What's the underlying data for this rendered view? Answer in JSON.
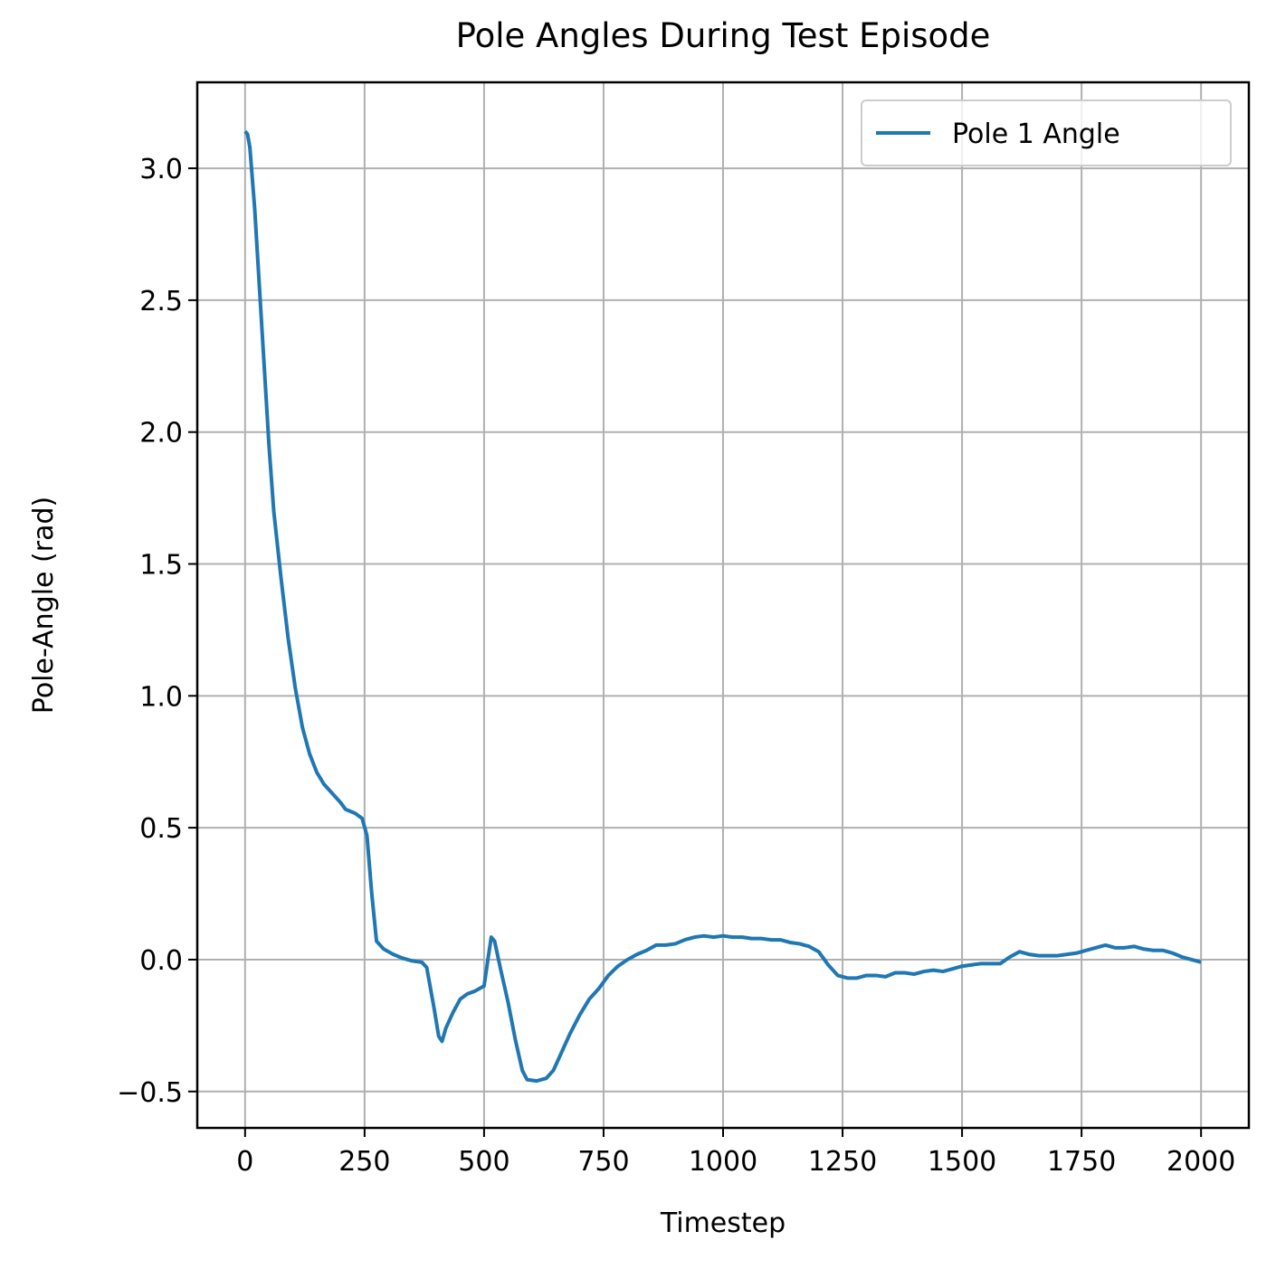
{
  "chart_data": {
    "type": "line",
    "title": "Pole Angles During Test Episode",
    "xlabel": "Timestep",
    "ylabel": "Pole-Angle (rad)",
    "x": [
      0,
      5,
      10,
      20,
      30,
      40,
      50,
      60,
      75,
      90,
      105,
      120,
      135,
      150,
      165,
      180,
      200,
      210,
      230,
      245,
      255,
      265,
      275,
      290,
      310,
      330,
      350,
      370,
      380,
      395,
      405,
      412,
      420,
      435,
      450,
      465,
      480,
      500,
      508,
      515,
      522,
      535,
      550,
      565,
      580,
      590,
      610,
      630,
      645,
      660,
      680,
      700,
      720,
      740,
      760,
      780,
      800,
      820,
      840,
      860,
      880,
      900,
      920,
      940,
      960,
      980,
      1000,
      1020,
      1040,
      1060,
      1080,
      1100,
      1120,
      1140,
      1160,
      1180,
      1200,
      1220,
      1240,
      1260,
      1280,
      1300,
      1320,
      1340,
      1360,
      1380,
      1400,
      1420,
      1440,
      1460,
      1480,
      1500,
      1520,
      1540,
      1560,
      1580,
      1600,
      1620,
      1640,
      1660,
      1680,
      1700,
      1720,
      1740,
      1760,
      1780,
      1800,
      1820,
      1840,
      1860,
      1880,
      1900,
      1920,
      1940,
      1960,
      1980,
      2000
    ],
    "series": [
      {
        "name": "Pole 1 Angle",
        "color": "#1f77b4",
        "values": [
          3.14,
          3.13,
          3.08,
          2.85,
          2.55,
          2.25,
          1.95,
          1.7,
          1.45,
          1.22,
          1.03,
          0.88,
          0.78,
          0.71,
          0.665,
          0.635,
          0.595,
          0.57,
          0.555,
          0.535,
          0.47,
          0.25,
          0.07,
          0.04,
          0.02,
          0.005,
          -0.005,
          -0.01,
          -0.03,
          -0.18,
          -0.29,
          -0.31,
          -0.26,
          -0.2,
          -0.15,
          -0.13,
          -0.12,
          -0.1,
          0.0,
          0.085,
          0.07,
          -0.04,
          -0.16,
          -0.3,
          -0.42,
          -0.455,
          -0.46,
          -0.45,
          -0.42,
          -0.36,
          -0.28,
          -0.21,
          -0.15,
          -0.11,
          -0.06,
          -0.025,
          0.0,
          0.02,
          0.035,
          0.055,
          0.055,
          0.06,
          0.075,
          0.085,
          0.09,
          0.085,
          0.09,
          0.085,
          0.085,
          0.08,
          0.08,
          0.075,
          0.075,
          0.065,
          0.06,
          0.05,
          0.03,
          -0.02,
          -0.06,
          -0.07,
          -0.07,
          -0.06,
          -0.06,
          -0.065,
          -0.05,
          -0.05,
          -0.055,
          -0.045,
          -0.04,
          -0.045,
          -0.035,
          -0.025,
          -0.02,
          -0.015,
          -0.015,
          -0.015,
          0.01,
          0.03,
          0.02,
          0.015,
          0.015,
          0.015,
          0.02,
          0.025,
          0.035,
          0.045,
          0.055,
          0.045,
          0.045,
          0.05,
          0.04,
          0.035,
          0.035,
          0.025,
          0.01,
          0.0,
          -0.01
        ]
      }
    ],
    "xlim": [
      -100,
      2100
    ],
    "ylim": [
      -0.638,
      3.326
    ],
    "xticks": [
      0,
      250,
      500,
      750,
      1000,
      1250,
      1500,
      1750,
      2000
    ],
    "yticks": [
      {
        "value": -0.5,
        "label": "−0.5"
      },
      {
        "value": 0,
        "label": "0.0"
      },
      0.5,
      {
        "value": 1,
        "label": "1.0"
      },
      1.5,
      {
        "value": 2,
        "label": "2.0"
      },
      2.5,
      {
        "value": 3,
        "label": "3.0"
      }
    ],
    "grid": true,
    "legend": "upper right"
  }
}
